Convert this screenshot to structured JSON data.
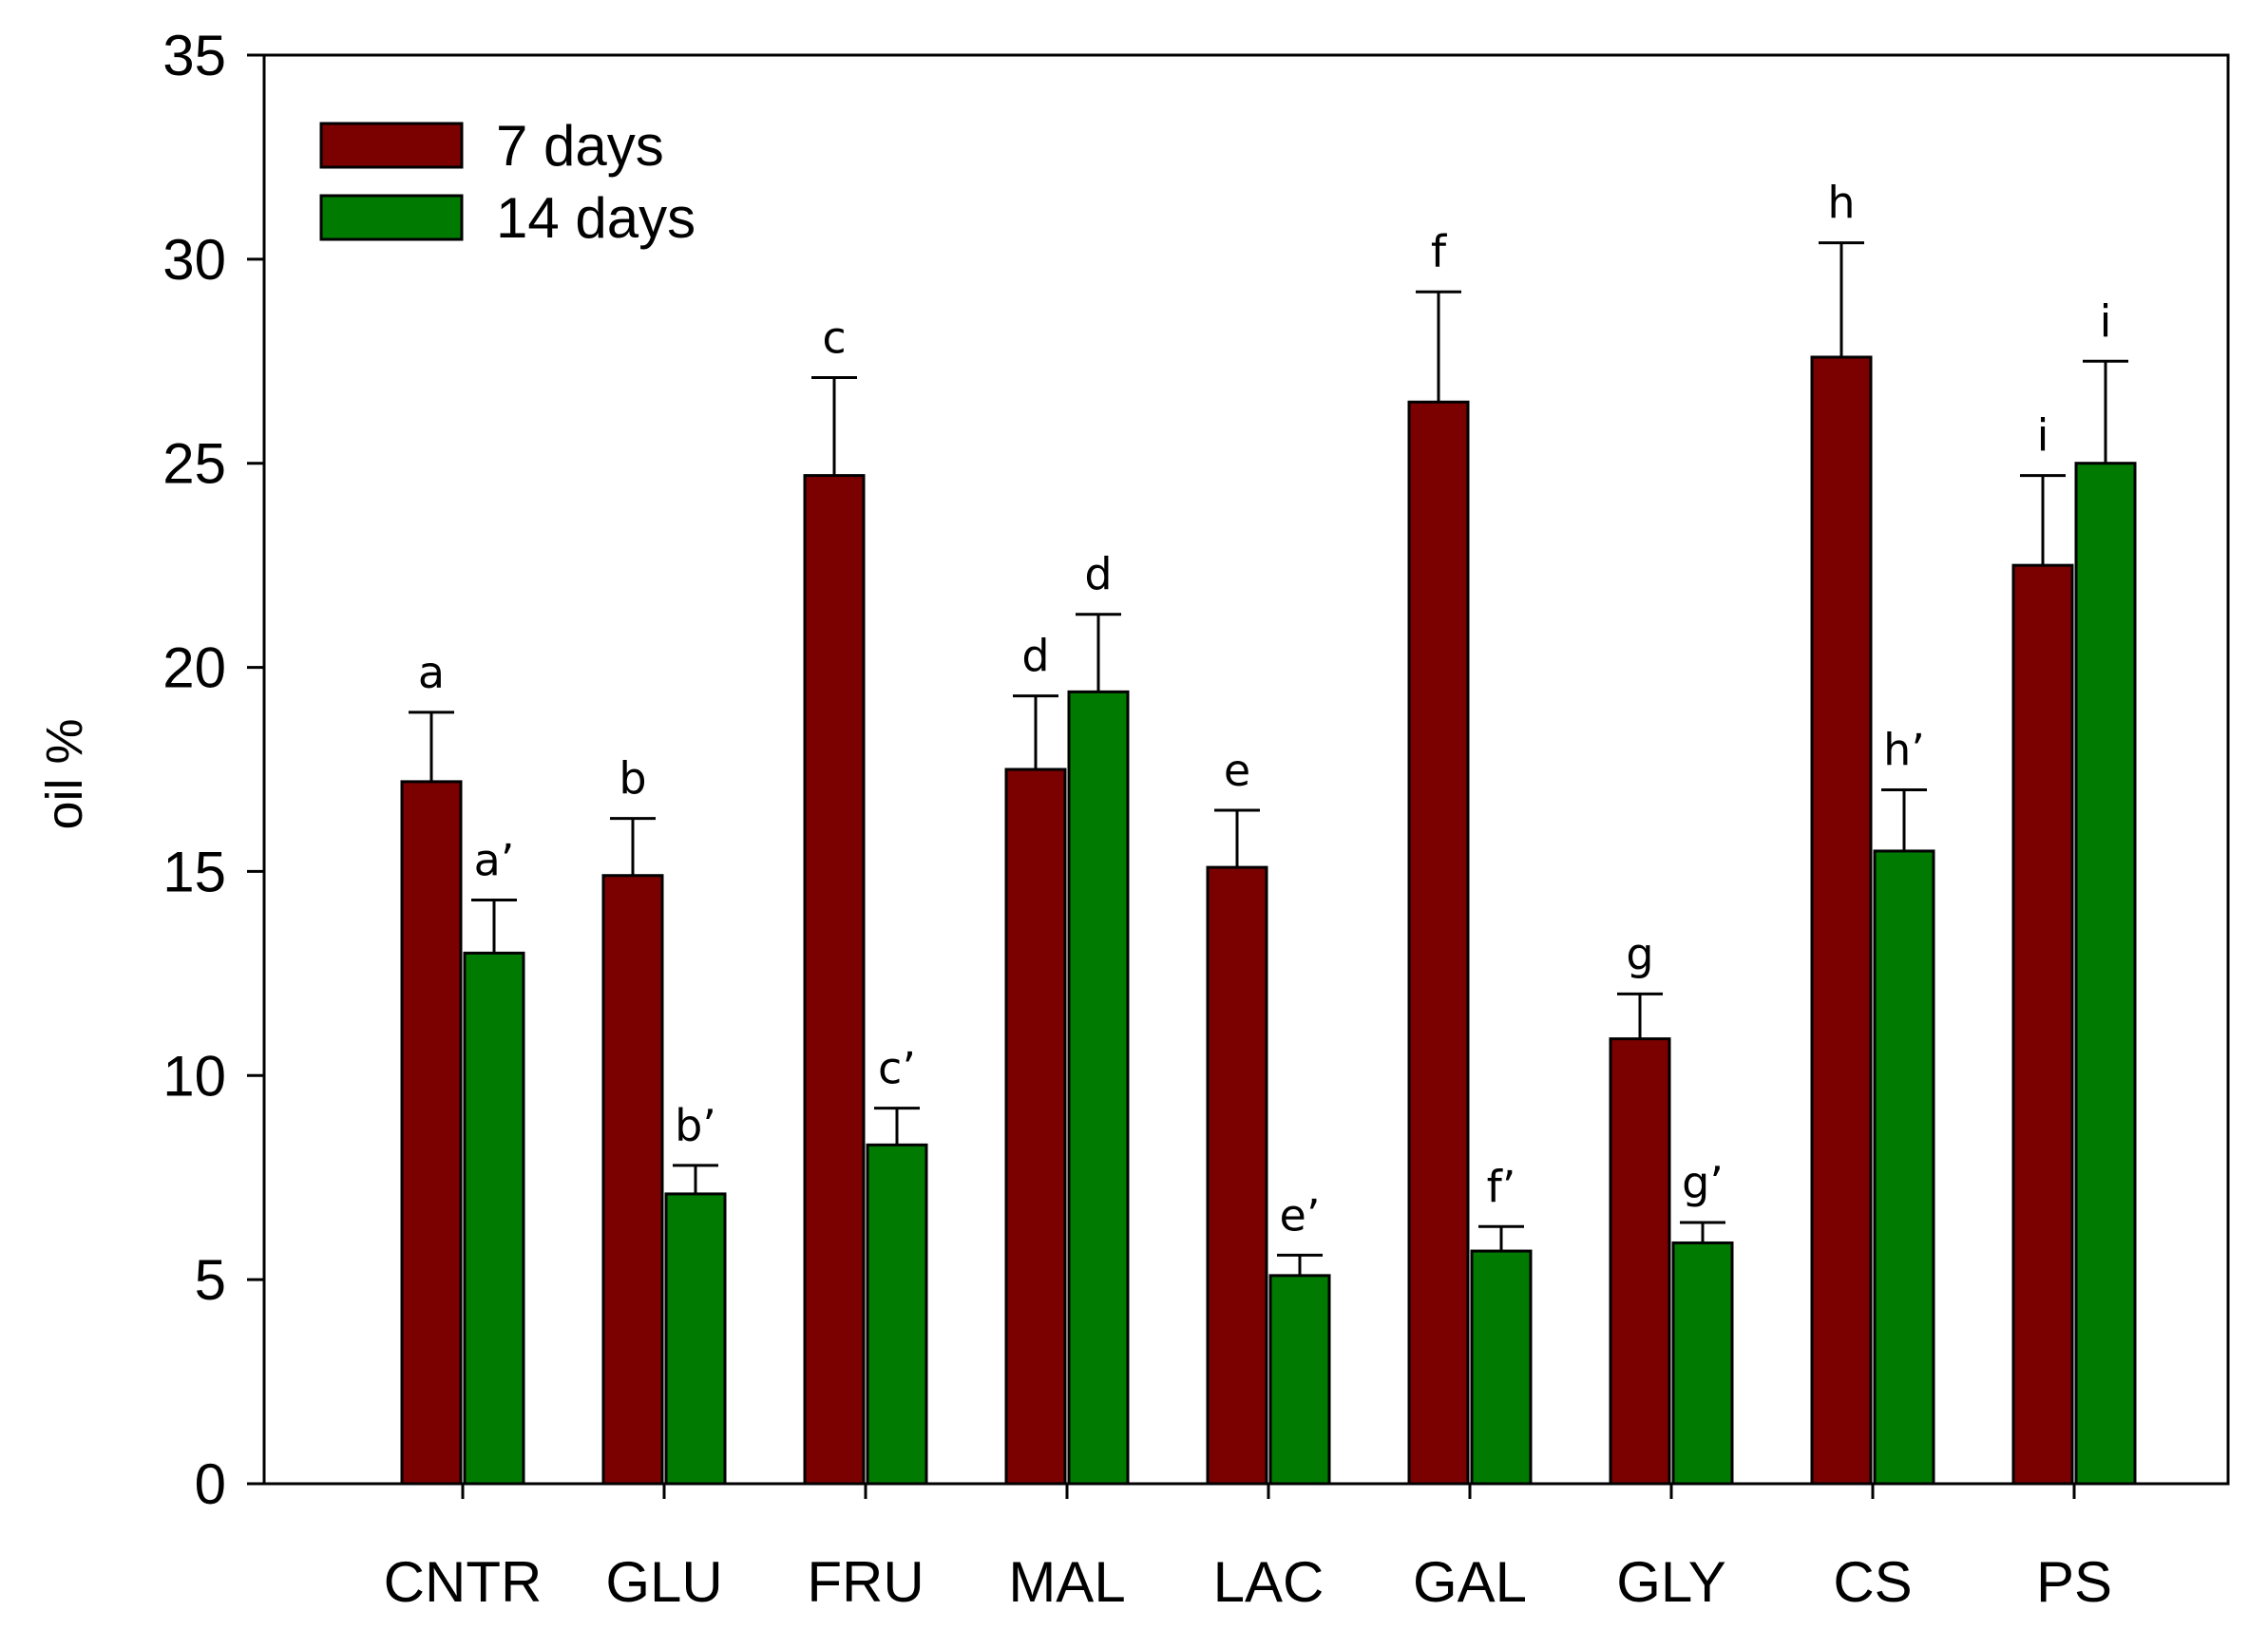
{
  "chart_data": {
    "type": "bar",
    "title": "",
    "xlabel": "",
    "ylabel": "oil %",
    "ylim": [
      0,
      35
    ],
    "yticks": [
      0,
      5,
      10,
      15,
      20,
      25,
      30,
      35
    ],
    "grid": false,
    "legend_position": "top-left",
    "categories": [
      "CNTR",
      "GLU",
      "FRU",
      "MAL",
      "LAC",
      "GAL",
      "GLY",
      "CS",
      "PS"
    ],
    "series": [
      {
        "name": "7 days",
        "color": "#7b0000",
        "values": [
          17.2,
          14.9,
          24.7,
          17.5,
          15.1,
          26.5,
          10.9,
          27.6,
          22.5
        ],
        "errors": [
          1.7,
          1.4,
          2.4,
          1.8,
          1.4,
          2.7,
          1.1,
          2.8,
          2.2
        ],
        "labels": [
          "a",
          "b",
          "c",
          "d",
          "e",
          "f",
          "g",
          "h",
          "i"
        ]
      },
      {
        "name": "14 days",
        "color": "#007a00",
        "values": [
          13.0,
          7.1,
          8.3,
          19.4,
          5.1,
          5.7,
          5.9,
          15.5,
          25.0
        ],
        "errors": [
          1.3,
          0.7,
          0.9,
          1.9,
          0.5,
          0.6,
          0.5,
          1.5,
          2.5
        ],
        "labels": [
          "a’",
          "b’",
          "c’",
          "d",
          "e’",
          "f’",
          "g’",
          "h’",
          "i"
        ]
      }
    ]
  }
}
